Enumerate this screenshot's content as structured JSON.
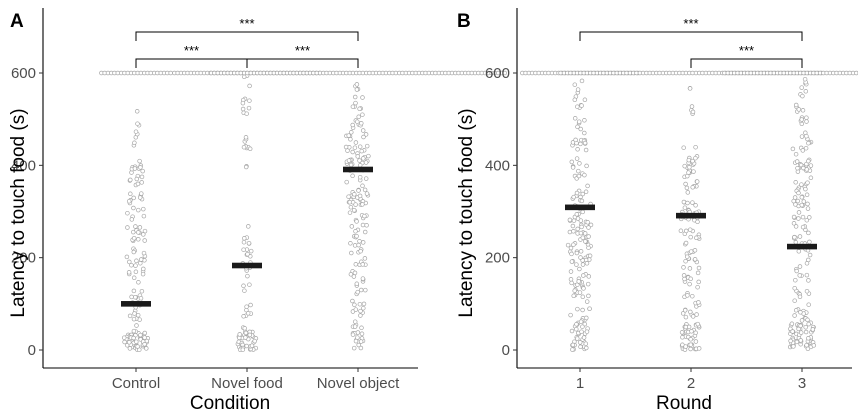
{
  "chart_data": [
    {
      "panel": "A",
      "type": "scatter",
      "subtype": "beeswarm with median bars",
      "xlabel": "Condition",
      "ylabel": "Latency to touch food (s)",
      "categories": [
        "Control",
        "Novel food",
        "Novel object"
      ],
      "medians": [
        100,
        183,
        391
      ],
      "ylim": [
        0,
        650
      ],
      "yticks": [
        0,
        200,
        400,
        600
      ],
      "ceiling_value": 600,
      "significance": [
        {
          "from": "Control",
          "to": "Novel food",
          "label": "***"
        },
        {
          "from": "Novel food",
          "to": "Novel object",
          "label": "***"
        },
        {
          "from": "Control",
          "to": "Novel object",
          "label": "***"
        }
      ],
      "grid": false,
      "point_color": "#a6a6a6",
      "median_color": "#1a1a1a"
    },
    {
      "panel": "B",
      "type": "scatter",
      "subtype": "beeswarm with median bars",
      "xlabel": "Round",
      "ylabel": "Latency to touch food (s)",
      "categories": [
        "1",
        "2",
        "3"
      ],
      "medians": [
        309,
        291,
        224
      ],
      "ylim": [
        0,
        650
      ],
      "yticks": [
        0,
        200,
        400,
        600
      ],
      "ceiling_value": 600,
      "significance": [
        {
          "from": "1",
          "to": "3",
          "label": "***"
        },
        {
          "from": "2",
          "to": "3",
          "label": "***"
        }
      ],
      "grid": false,
      "point_color": "#a6a6a6",
      "median_color": "#1a1a1a"
    }
  ]
}
